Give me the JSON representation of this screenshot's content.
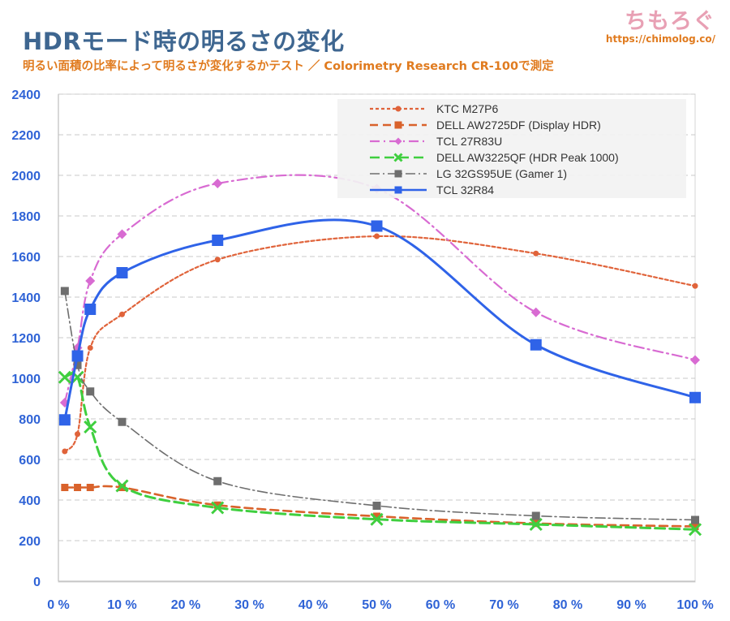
{
  "header": {
    "title": "HDRモード時の明るさの変化",
    "subtitle": "明るい面積の比率によって明るさが変化するかテスト ／ Colorimetry Research CR-100で測定",
    "brand_logo": "ちもろぐ",
    "brand_url": "https://chimolog.co/"
  },
  "chart_data": {
    "type": "line",
    "xlabel": "",
    "ylabel": "",
    "x_tick_labels": [
      "0 %",
      "10 %",
      "20 %",
      "30 %",
      "40 %",
      "50 %",
      "60 %",
      "70 %",
      "80 %",
      "90 %",
      "100 %"
    ],
    "y_tick_labels": [
      "0",
      "200",
      "400",
      "600",
      "800",
      "1000",
      "1200",
      "1400",
      "1600",
      "1800",
      "2000",
      "2200",
      "2400"
    ],
    "xlim": [
      0,
      100
    ],
    "ylim": [
      0,
      2400
    ],
    "grid": "horizontal dashed",
    "legend_position": "top-right",
    "series": [
      {
        "name": "KTC M27P6",
        "color": "#e0633a",
        "dash": "4,3",
        "marker": "circle",
        "marker_size": 3.5,
        "stroke_width": 2.2,
        "points": [
          [
            1,
            640
          ],
          [
            3,
            725
          ],
          [
            5,
            1150
          ],
          [
            10,
            1315
          ],
          [
            25,
            1585
          ],
          [
            50,
            1700
          ],
          [
            75,
            1615
          ],
          [
            100,
            1455
          ]
        ]
      },
      {
        "name": "DELL AW2725DF (Display HDR)",
        "color": "#d9622b",
        "dash": "10,6",
        "marker": "square",
        "marker_size": 4.5,
        "stroke_width": 2.6,
        "points": [
          [
            1,
            462
          ],
          [
            3,
            462
          ],
          [
            5,
            462
          ],
          [
            10,
            462
          ],
          [
            25,
            375
          ],
          [
            50,
            320
          ],
          [
            75,
            285
          ],
          [
            100,
            270
          ]
        ]
      },
      {
        "name": "TCL 27R83U",
        "color": "#d86bd2",
        "dash": "12,5,2,5",
        "marker": "diamond",
        "marker_size": 6,
        "stroke_width": 2.2,
        "points": [
          [
            1,
            880
          ],
          [
            3,
            1150
          ],
          [
            5,
            1480
          ],
          [
            10,
            1710
          ],
          [
            25,
            1960
          ],
          [
            50,
            1935
          ],
          [
            75,
            1325
          ],
          [
            100,
            1090
          ]
        ]
      },
      {
        "name": "DELL AW3225QF (HDR Peak 1000)",
        "color": "#3fcf3f",
        "dash": "12,6",
        "marker": "x",
        "marker_size": 7,
        "stroke_width": 3,
        "points": [
          [
            1,
            1005
          ],
          [
            3,
            1005
          ],
          [
            5,
            760
          ],
          [
            10,
            470
          ],
          [
            25,
            362
          ],
          [
            50,
            305
          ],
          [
            75,
            280
          ],
          [
            100,
            255
          ]
        ]
      },
      {
        "name": "LG 32GS95UE (Gamer 1)",
        "color": "#6e6e6e",
        "dash": "12,4,2,4",
        "marker": "square",
        "marker_size": 5,
        "stroke_width": 1.6,
        "points": [
          [
            1,
            1430
          ],
          [
            3,
            1065
          ],
          [
            5,
            935
          ],
          [
            10,
            785
          ],
          [
            25,
            493
          ],
          [
            50,
            372
          ],
          [
            75,
            322
          ],
          [
            100,
            302
          ]
        ]
      },
      {
        "name": "TCL 32R84",
        "color": "#2f63e8",
        "dash": "",
        "marker": "square",
        "marker_size": 7,
        "stroke_width": 3,
        "points": [
          [
            1,
            795
          ],
          [
            3,
            1110
          ],
          [
            5,
            1340
          ],
          [
            10,
            1520
          ],
          [
            25,
            1680
          ],
          [
            50,
            1750
          ],
          [
            75,
            1165
          ],
          [
            100,
            905
          ]
        ]
      }
    ]
  }
}
